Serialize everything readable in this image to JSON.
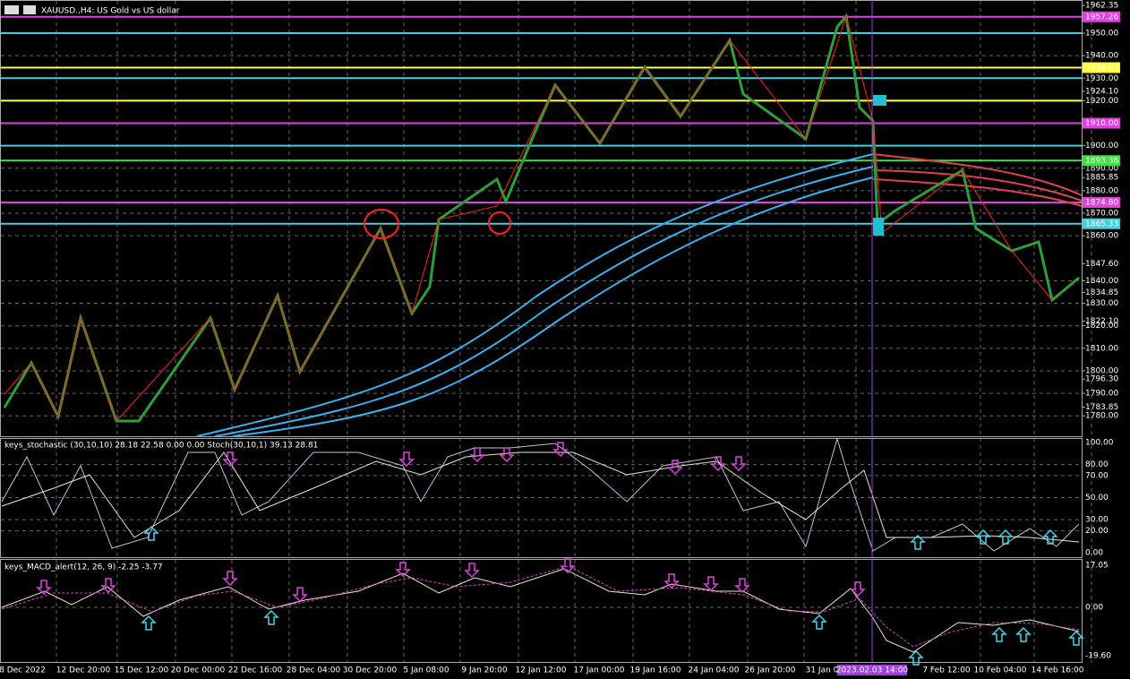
{
  "window": {
    "title": "XAUUSD.,H4:  US Gold vs US dollar"
  },
  "price_axis": {
    "labels": [
      "1962.35",
      "1950.00",
      "1940.00",
      "1930.00",
      "1924.10",
      "1920.00",
      "1900.00",
      "1890.00",
      "1885.85",
      "1880.00",
      "1870.00",
      "1860.00",
      "1847.60",
      "1840.00",
      "1834.85",
      "1830.00",
      "1822.10",
      "1820.00",
      "1810.00",
      "1800.00",
      "1796.30",
      "1790.00",
      "1783.85",
      "1780.00"
    ]
  },
  "levels": [
    {
      "label": "1957.26",
      "color": "#e040e0"
    },
    {
      "label": "1934.67",
      "color": "#ffff40"
    },
    {
      "label": "1910.00",
      "color": "#e040e0"
    },
    {
      "label": "1893.38",
      "color": "#40e040"
    },
    {
      "label": "1874.80",
      "color": "#e040e0"
    },
    {
      "label": "1865.33",
      "color": "#40d0e0"
    }
  ],
  "stochastic": {
    "header": "keys_stochastic (30,10,10) 28.18 22.58 0.00 0.00 Stoch(30,10,1) 39.13 28.81",
    "labels": [
      "100.00",
      "80.00",
      "70.00",
      "50.00",
      "30.00",
      "20.00",
      "0.00"
    ]
  },
  "macd": {
    "header": "keys_MACD_alert(12, 26, 9) -2.25 -3.77",
    "labels": [
      "17.05",
      "0.00",
      "-19.60"
    ]
  },
  "time_axis": {
    "labels": [
      "8 Dec 2022",
      "12 Dec 20:00",
      "15 Dec 12:00",
      "20 Dec 00:00",
      "22 Dec 16:00",
      "28 Dec 04:00",
      "30 Dec 20:00",
      "5 Jan 08:00",
      "9 Jan 20:00",
      "12 Jan 12:00",
      "17 Jan 00:00",
      "19 Jan 16:00",
      "24 Jan 04:00",
      "26 Jan 20:00",
      "31 Jan 0",
      "7 Feb 12:00",
      "10 Feb 04:00",
      "14 Feb 16:00"
    ],
    "cursor": "2023.02.03 14:00"
  }
}
